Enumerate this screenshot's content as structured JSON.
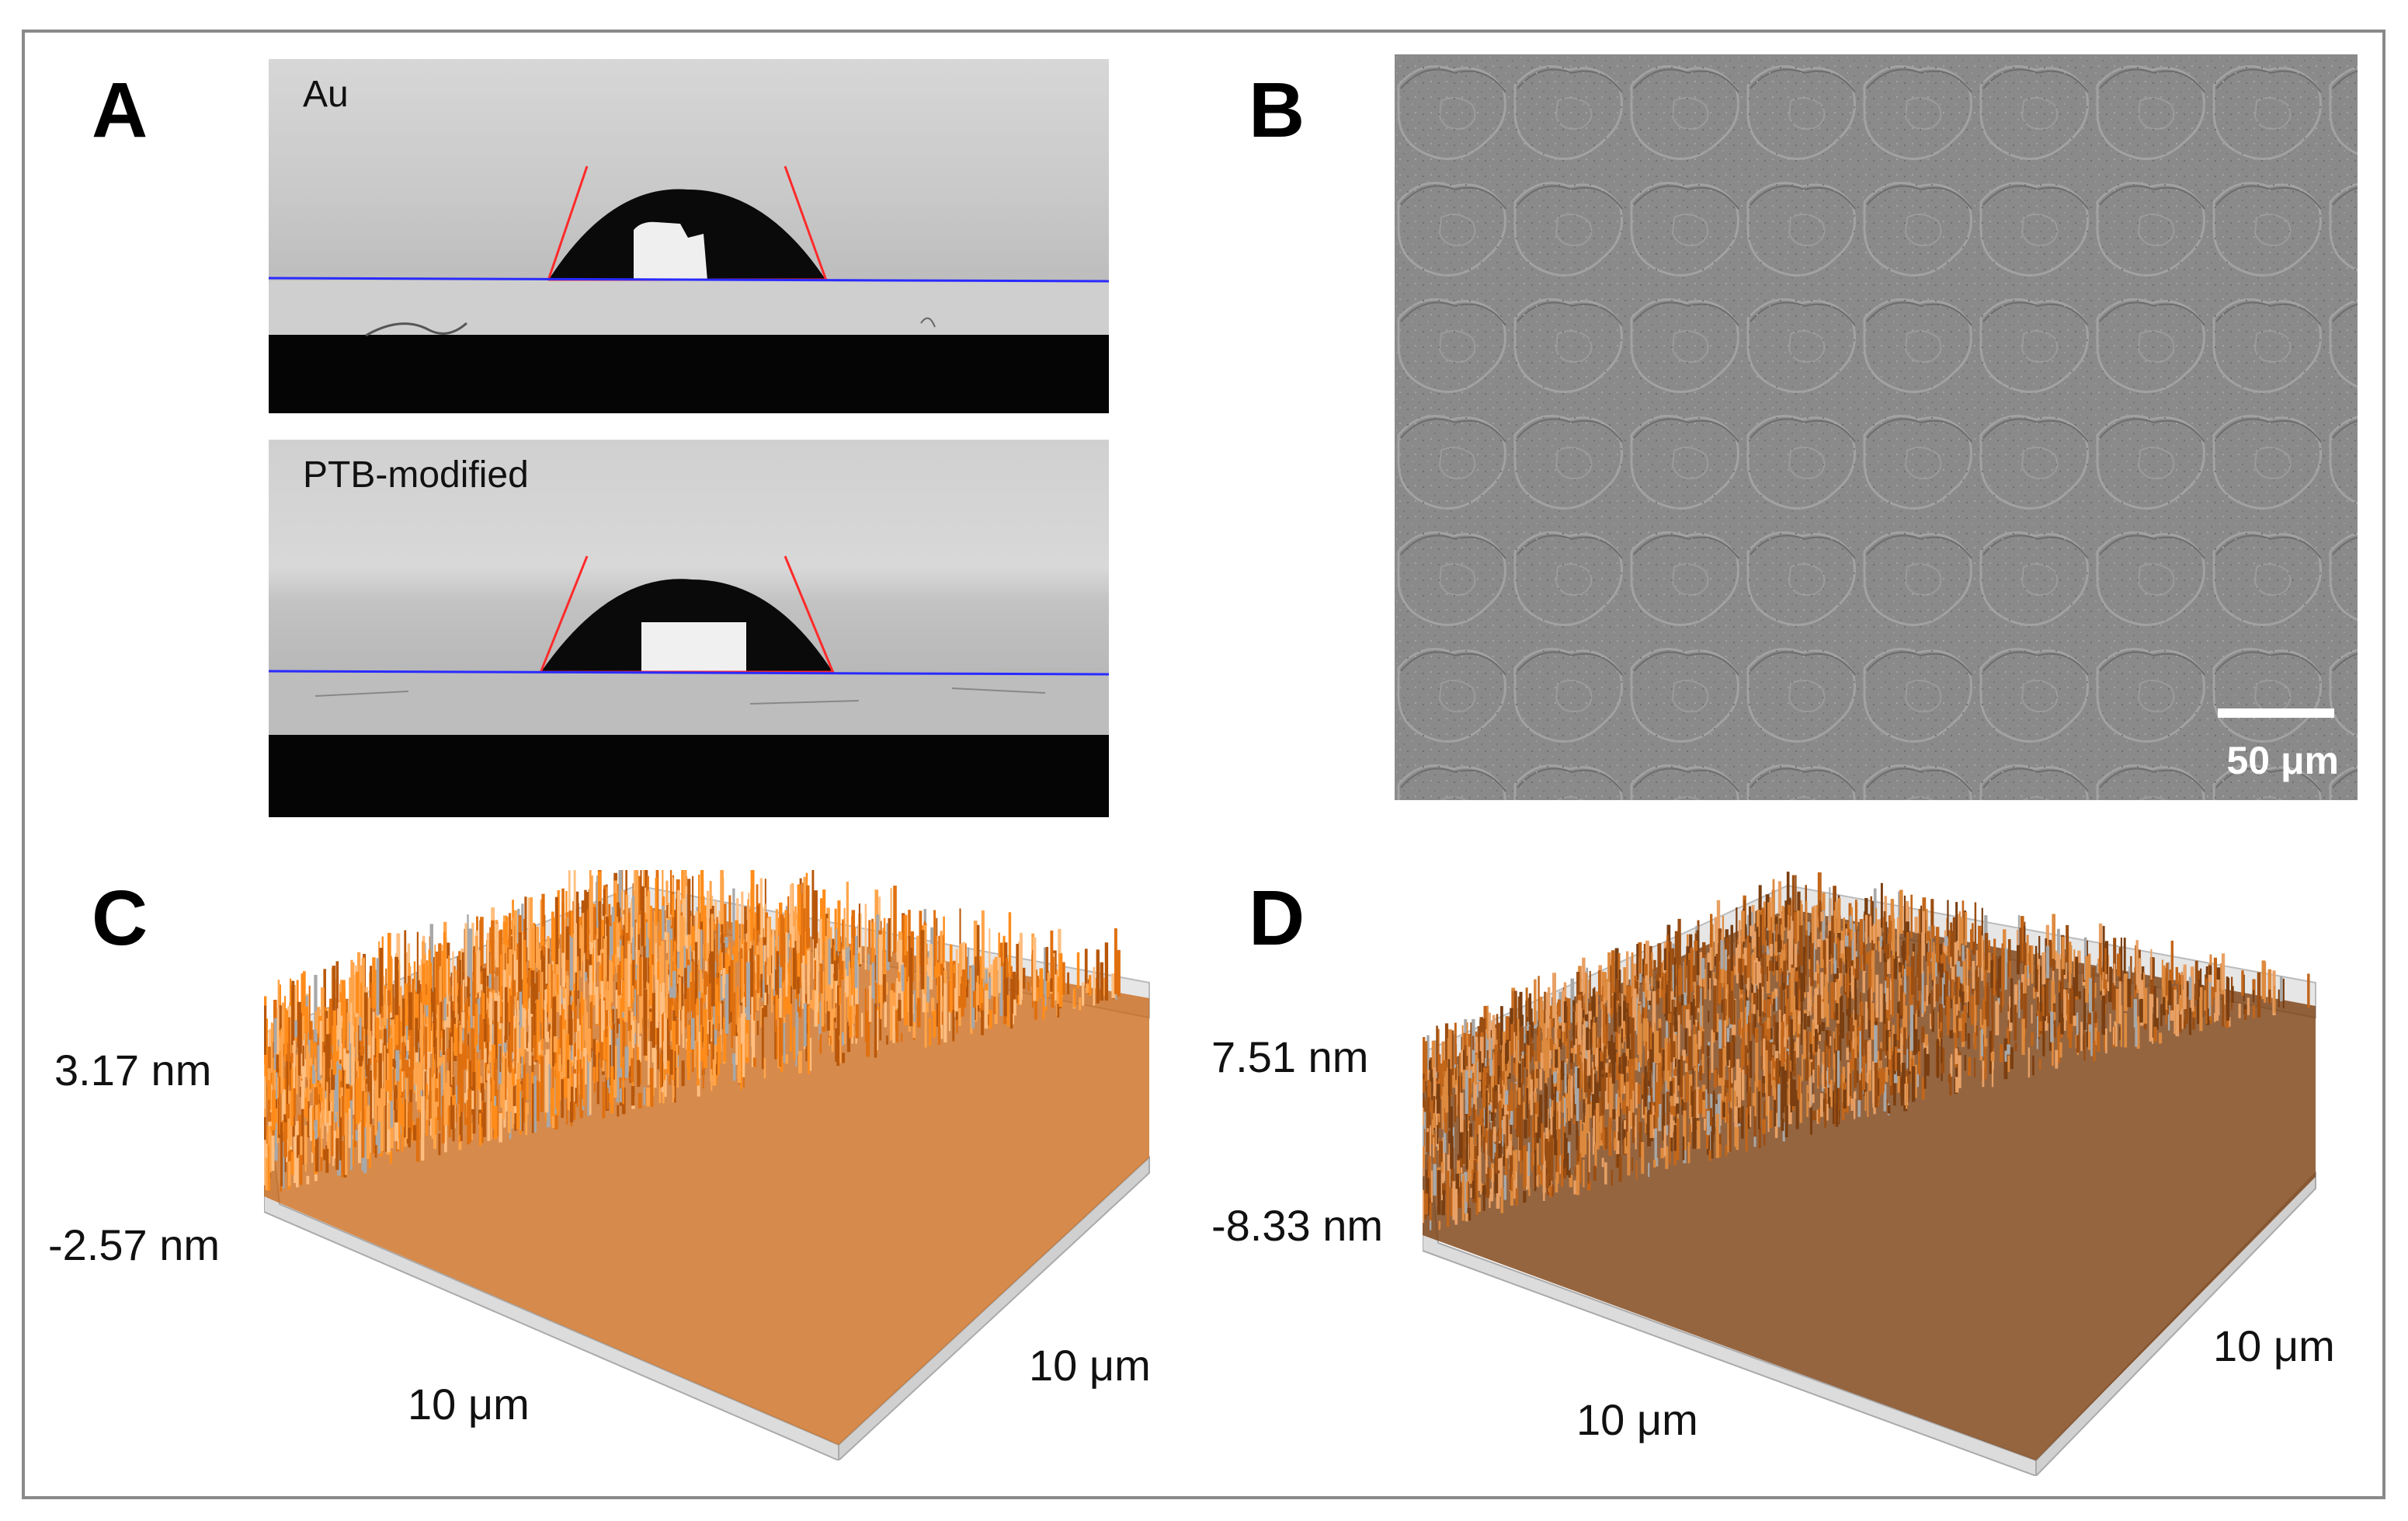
{
  "figure": {
    "panels": {
      "a": {
        "letter": "A",
        "images": [
          {
            "label": "Au"
          },
          {
            "label": "PTB-modified"
          }
        ]
      },
      "b": {
        "letter": "B",
        "scale_bar": "50 μm"
      },
      "c": {
        "letter": "C",
        "z_max": "3.17 nm",
        "z_min": "-2.57 nm",
        "x_extent": "10 μm",
        "y_extent": "10 μm"
      },
      "d": {
        "letter": "D",
        "z_max": "7.51 nm",
        "z_min": "-8.33 nm",
        "x_extent": "10 μm",
        "y_extent": "10 μm"
      }
    },
    "colors": {
      "frame": "#8a8a8a",
      "baseline": "#2a2aff",
      "tangent": "#ff2a2a",
      "afm_c": "#ff8c1a",
      "afm_d": "#c2661a"
    }
  }
}
